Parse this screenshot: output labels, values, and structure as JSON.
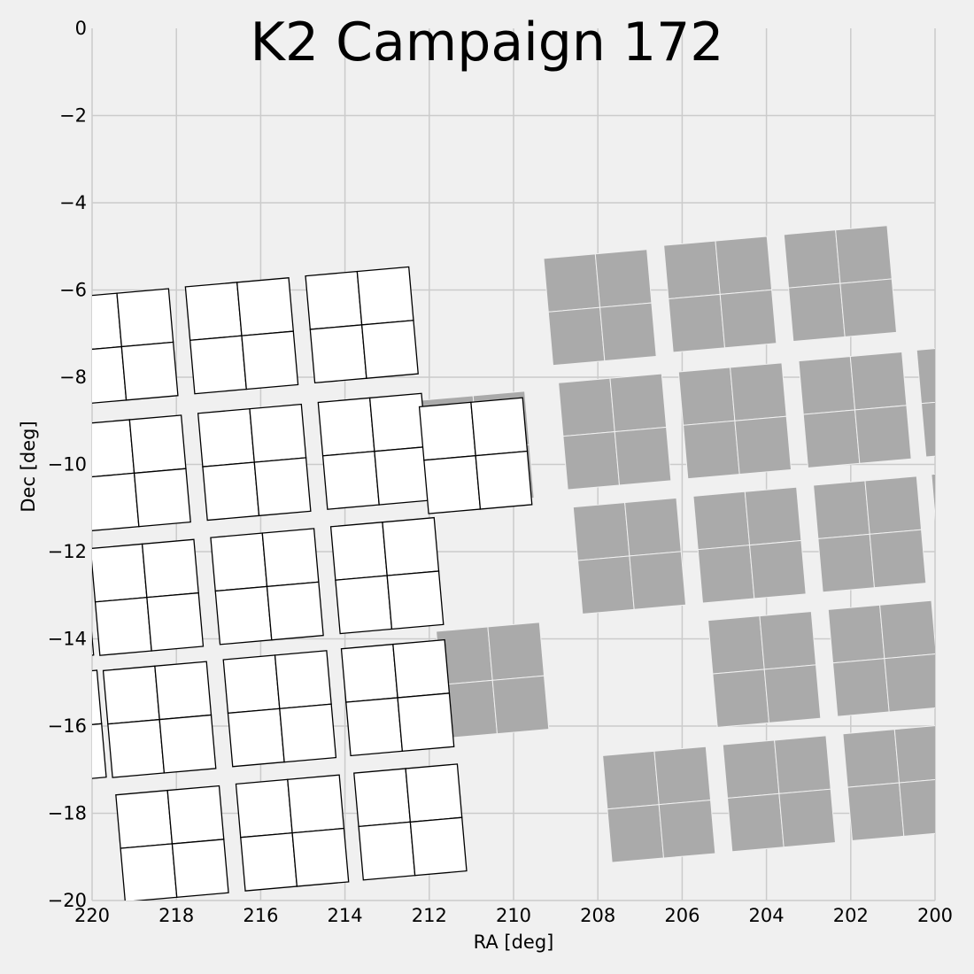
{
  "chart_data": {
    "type": "scatter",
    "title": "K2 Campaign 172",
    "xlabel": "RA [deg]",
    "ylabel": "Dec [deg]",
    "xlim": [
      220,
      200
    ],
    "ylim": [
      -20,
      0
    ],
    "xticks": [
      "220",
      "218",
      "216",
      "214",
      "212",
      "210",
      "208",
      "206",
      "204",
      "202",
      "200"
    ],
    "yticks": [
      "0",
      "−2",
      "−4",
      "−6",
      "−8",
      "−10",
      "−12",
      "−14",
      "−16",
      "−18",
      "−20"
    ],
    "grid": true,
    "colors": {
      "background": "#f0f0f0",
      "grid": "#cbcbcb",
      "filled_ccd": "#aaaaaa",
      "outlined_ccd": "#ffffff",
      "outline": "#000000"
    },
    "series": [
      {
        "style": "filled",
        "rotation_deg": -5,
        "modules": [
          {
            "ra": 207.95,
            "dec": -6.4
          },
          {
            "ra": 205.1,
            "dec": -6.1
          },
          {
            "ra": 202.25,
            "dec": -5.85
          },
          {
            "ra": 207.6,
            "dec": -9.25
          },
          {
            "ra": 204.75,
            "dec": -9.0
          },
          {
            "ra": 201.9,
            "dec": -8.75
          },
          {
            "ra": 199.1,
            "dec": -8.5
          },
          {
            "ra": 207.25,
            "dec": -12.1
          },
          {
            "ra": 204.4,
            "dec": -11.85
          },
          {
            "ra": 201.55,
            "dec": -11.6
          },
          {
            "ra": 198.75,
            "dec": -11.35
          },
          {
            "ra": 204.05,
            "dec": -14.7
          },
          {
            "ra": 201.2,
            "dec": -14.45
          },
          {
            "ra": 206.55,
            "dec": -17.8
          },
          {
            "ra": 203.7,
            "dec": -17.55
          },
          {
            "ra": 200.85,
            "dec": -17.3
          },
          {
            "ra": 210.85,
            "dec": -9.65
          },
          {
            "ra": 210.5,
            "dec": -14.95
          }
        ]
      },
      {
        "style": "outlined",
        "rotation_deg": -5,
        "modules": [
          {
            "ra": 216.45,
            "dec": -7.05
          },
          {
            "ra": 213.6,
            "dec": -6.8
          },
          {
            "ra": 216.15,
            "dec": -9.95
          },
          {
            "ra": 213.3,
            "dec": -9.7
          },
          {
            "ra": 215.85,
            "dec": -12.8
          },
          {
            "ra": 213.0,
            "dec": -12.55
          },
          {
            "ra": 215.55,
            "dec": -15.6
          },
          {
            "ra": 212.75,
            "dec": -15.35
          },
          {
            "ra": 215.25,
            "dec": -18.45
          },
          {
            "ra": 212.45,
            "dec": -18.2
          },
          {
            "ra": 219.3,
            "dec": -7.3
          },
          {
            "ra": 219.0,
            "dec": -10.2
          },
          {
            "ra": 218.7,
            "dec": -13.05
          },
          {
            "ra": 218.4,
            "dec": -15.85
          },
          {
            "ra": 218.1,
            "dec": -18.7
          },
          {
            "ra": 221.3,
            "dec": -13.25
          },
          {
            "ra": 221.0,
            "dec": -16.05
          },
          {
            "ra": 210.9,
            "dec": -9.8
          }
        ]
      }
    ]
  }
}
